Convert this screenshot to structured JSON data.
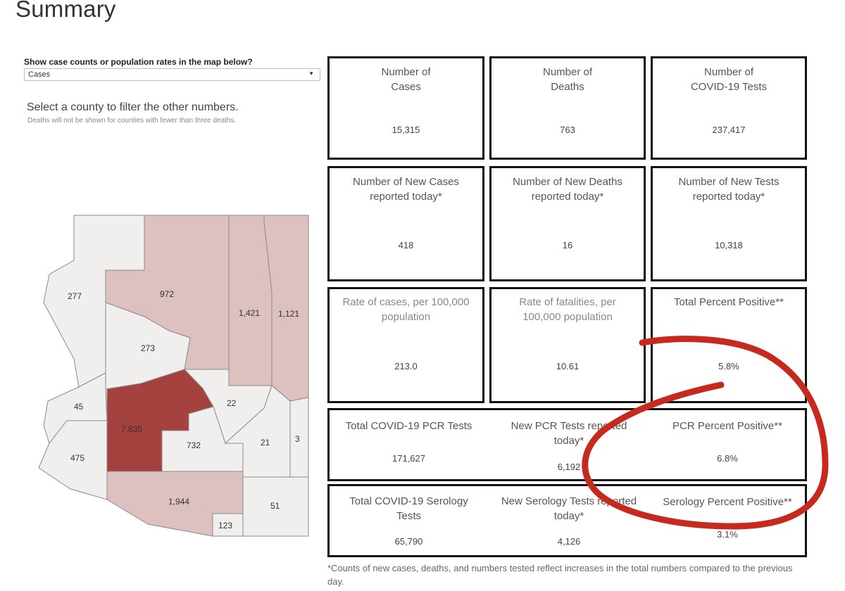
{
  "title": "Summary",
  "filter": {
    "label": "Show case counts or population rates in the map below?",
    "selected": "Cases"
  },
  "instruction": "Select a county to filter the other numbers.",
  "instruction_note": "Deaths will not be shown for counties with fewer than three deaths.",
  "map": {
    "counties": [
      {
        "value": "277"
      },
      {
        "value": "972"
      },
      {
        "value": "1,421"
      },
      {
        "value": "1,121"
      },
      {
        "value": "273"
      },
      {
        "value": "45"
      },
      {
        "value": "7,835"
      },
      {
        "value": "22"
      },
      {
        "value": "732"
      },
      {
        "value": "21"
      },
      {
        "value": "3"
      },
      {
        "value": "475"
      },
      {
        "value": "1,944"
      },
      {
        "value": "51"
      },
      {
        "value": "123"
      }
    ],
    "colors": {
      "light": "#f1eeee",
      "mid": "#ddc0c0",
      "dark": "#a5413f",
      "border": "#8a8a8a"
    }
  },
  "kpis": [
    {
      "label": "Number of\nCases",
      "value": "15,315"
    },
    {
      "label": "Number of\nDeaths",
      "value": "763"
    },
    {
      "label": "Number of\nCOVID-19 Tests",
      "value": "237,417"
    },
    {
      "label": "Number of New Cases\nreported today*",
      "value": "418"
    },
    {
      "label": "Number of New Deaths\nreported today*",
      "value": "16"
    },
    {
      "label": "Number of New Tests\nreported today*",
      "value": "10,318"
    },
    {
      "label": "Rate of cases, per 100,000\npopulation",
      "value": "213.0"
    },
    {
      "label": "Rate of fatalities, per\n100,000 population",
      "value": "10.61"
    },
    {
      "label": "Total Percent Positive**",
      "value": "5.8%"
    }
  ],
  "pcr": [
    {
      "label": "Total COVID-19 PCR Tests",
      "value": "171,627"
    },
    {
      "label": "New PCR Tests reported\ntoday*",
      "value": "6,192"
    },
    {
      "label": "PCR Percent Positive**",
      "value": "6.8%"
    }
  ],
  "serology": [
    {
      "label": "Total COVID-19 Serology\nTests",
      "value": "65,790"
    },
    {
      "label": "New Serology Tests reported\ntoday*",
      "value": "4,126"
    },
    {
      "label": "Serology Percent Positive**",
      "value": "3.1%"
    }
  ],
  "footnote": "*Counts of new cases, deaths, and numbers tested reflect increases in the total numbers compared to the previous day.",
  "annotation_color": "#c62a1e"
}
